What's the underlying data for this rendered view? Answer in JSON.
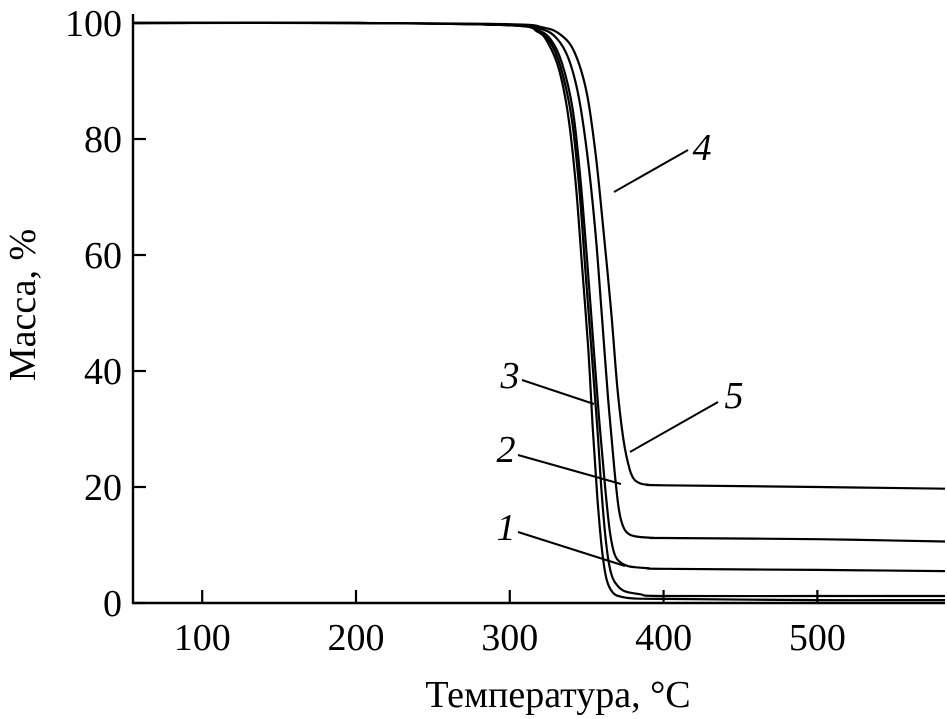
{
  "chart_data": {
    "type": "line",
    "title": "",
    "xlabel": "Температура, °C",
    "ylabel": "Масса, %",
    "xlim": [
      55,
      583
    ],
    "ylim": [
      0,
      100
    ],
    "xticks": [
      100,
      200,
      300,
      400,
      500
    ],
    "yticks": [
      0,
      20,
      40,
      60,
      80,
      100
    ],
    "grid": false,
    "series": [
      {
        "name": "1",
        "x": [
          55,
          200,
          300,
          318,
          325,
          332,
          338,
          343,
          347,
          351,
          354,
          357,
          360,
          363,
          367,
          372,
          380,
          400,
          500,
          583
        ],
        "y": [
          100,
          100,
          99.6,
          98.5,
          96.5,
          92,
          84,
          72,
          58,
          44,
          30,
          18,
          9,
          4,
          1.8,
          1.1,
          0.8,
          0.7,
          0.5,
          0.5
        ]
      },
      {
        "name": "2",
        "x": [
          55,
          200,
          300,
          318,
          326,
          333,
          340,
          345,
          349,
          353,
          357,
          360,
          363,
          366,
          370,
          375,
          385,
          400,
          500,
          583
        ],
        "y": [
          100,
          100,
          99.6,
          98.6,
          96.8,
          92.5,
          84,
          72,
          58,
          44,
          30,
          18,
          9.5,
          5,
          3,
          2,
          1.5,
          1.2,
          1.2,
          1.2
        ]
      },
      {
        "name": "3",
        "x": [
          55,
          200,
          300,
          318,
          327,
          334,
          341,
          346,
          350,
          354,
          358,
          362,
          365,
          368,
          372,
          378,
          390,
          400,
          500,
          583
        ],
        "y": [
          100,
          100,
          99.6,
          98.8,
          97,
          93,
          85,
          73,
          60,
          46,
          32,
          20,
          12.5,
          8.5,
          7,
          6.3,
          6,
          5.9,
          5.7,
          5.5
        ]
      },
      {
        "name": "4",
        "x": [
          55,
          200,
          300,
          320,
          330,
          338,
          345,
          351,
          356,
          360,
          364,
          368,
          371,
          374,
          378,
          384,
          395,
          400,
          500,
          583
        ],
        "y": [
          100,
          100,
          99.7,
          99,
          97.5,
          94,
          87,
          76,
          63,
          49,
          35,
          23,
          16,
          13,
          11.8,
          11.4,
          11.2,
          11.2,
          11,
          10.6
        ]
      },
      {
        "name": "5",
        "x": [
          55,
          200,
          300,
          322,
          333,
          342,
          350,
          356,
          361,
          366,
          370,
          374,
          378,
          381,
          385,
          390,
          400,
          500,
          583
        ],
        "y": [
          100,
          100,
          99.8,
          99.2,
          98,
          95,
          88,
          77,
          64,
          50,
          37,
          28,
          23,
          21.3,
          20.6,
          20.4,
          20.3,
          20,
          19.7
        ]
      }
    ],
    "annotations": [
      {
        "text": "1",
        "series": "1"
      },
      {
        "text": "2",
        "series": "2"
      },
      {
        "text": "3",
        "series": "3"
      },
      {
        "text": "4",
        "series": "4"
      },
      {
        "text": "5",
        "series": "5"
      }
    ]
  }
}
